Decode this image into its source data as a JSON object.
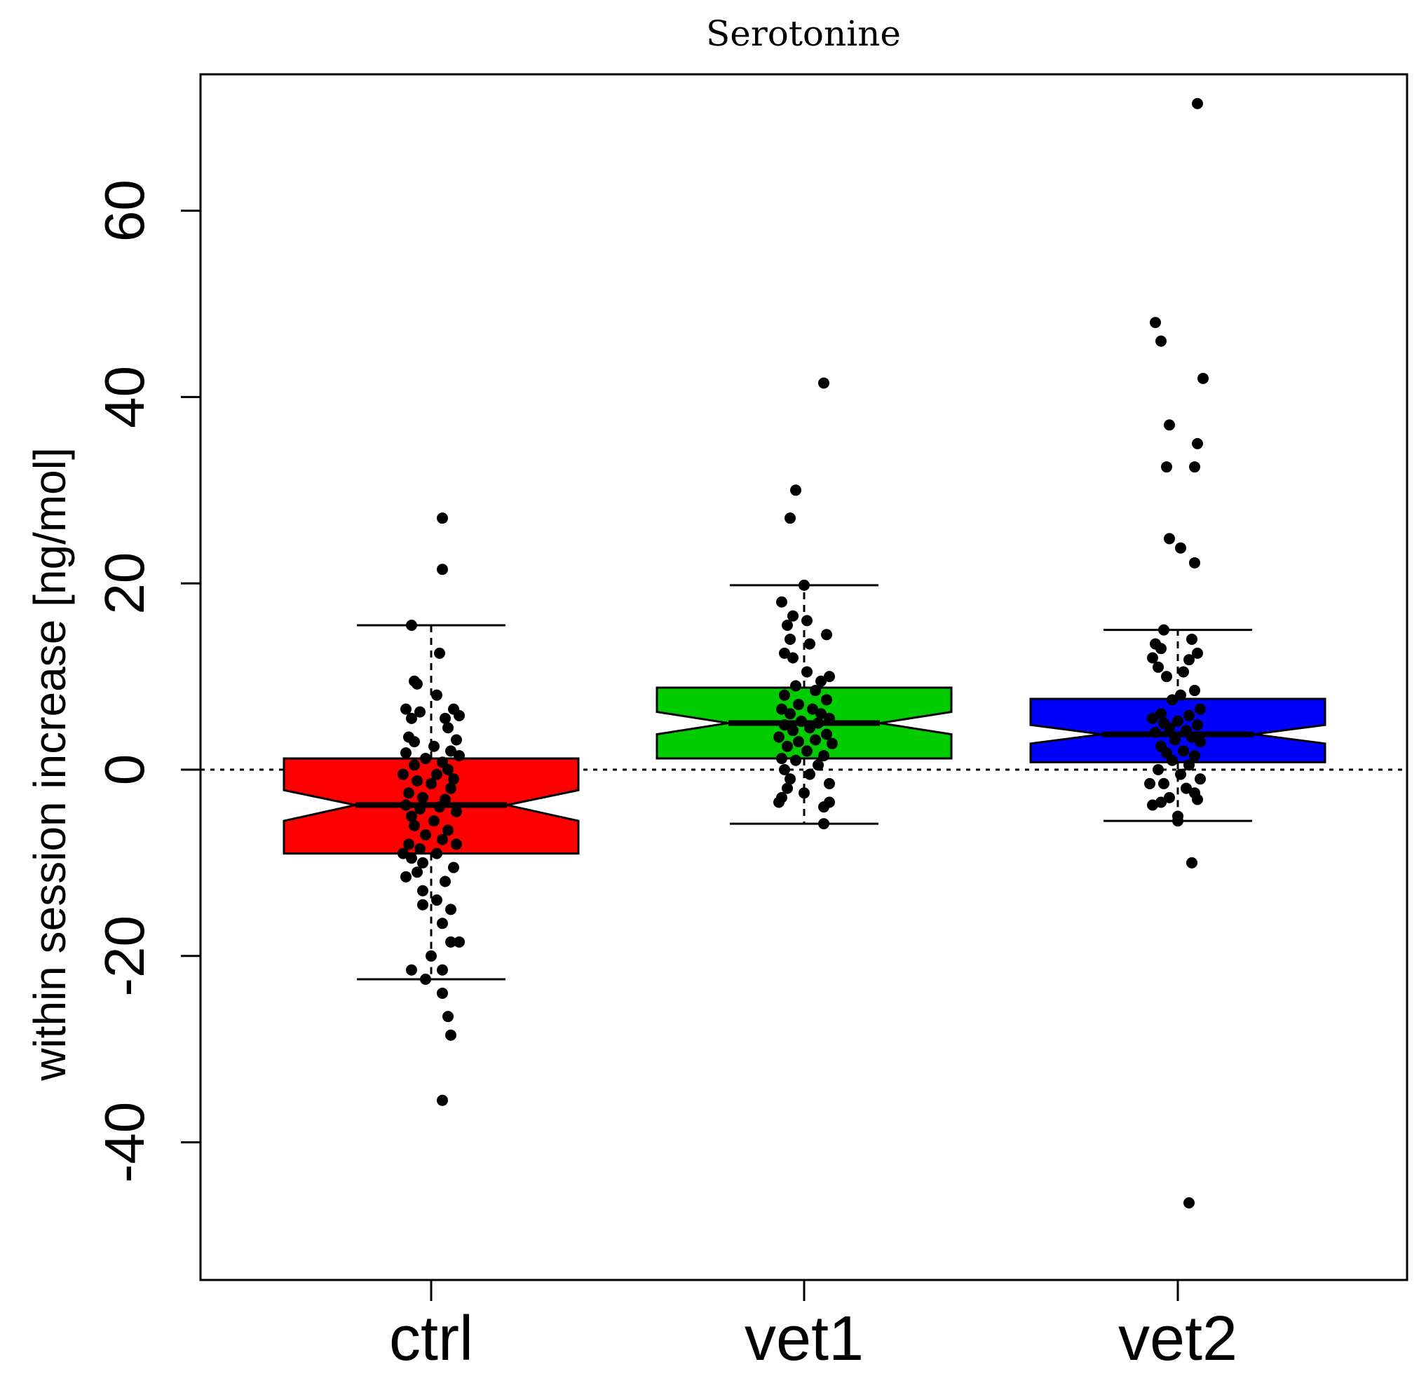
{
  "chart_data": {
    "type": "box",
    "title": "Serotonine",
    "xlabel": "",
    "ylabel": "within session increase [ng/mol]",
    "ylim": [
      -55,
      75
    ],
    "yticks": [
      -40,
      -20,
      0,
      20,
      40,
      60
    ],
    "reference_line": {
      "y": 0,
      "style": "dotted"
    },
    "notched": true,
    "categories": [
      "ctrl",
      "vet1",
      "vet2"
    ],
    "boxes": [
      {
        "name": "ctrl",
        "color": "#ff0000",
        "whisker_low": -22.5,
        "q1": -9.0,
        "median": -3.8,
        "q3": 1.2,
        "whisker_high": 15.5,
        "notch_low": -5.5,
        "notch_high": -2.2
      },
      {
        "name": "vet1",
        "color": "#00cc00",
        "whisker_low": -5.8,
        "q1": 1.2,
        "median": 5.0,
        "q3": 8.8,
        "whisker_high": 19.8,
        "notch_low": 3.8,
        "notch_high": 6.2
      },
      {
        "name": "vet2",
        "color": "#0000ff",
        "whisker_low": -5.5,
        "q1": 0.8,
        "median": 3.8,
        "q3": 7.6,
        "whisker_high": 15.0,
        "notch_low": 2.8,
        "notch_high": 4.8
      }
    ],
    "points": [
      [
        {
          "x": 0.04,
          "y": 27.0
        },
        {
          "x": 0.04,
          "y": 21.5
        },
        {
          "x": -0.07,
          "y": 15.5
        },
        {
          "x": 0.03,
          "y": 12.5
        },
        {
          "x": -0.06,
          "y": 9.5
        },
        {
          "x": -0.05,
          "y": 9.2
        },
        {
          "x": 0.02,
          "y": 8.0
        },
        {
          "x": -0.09,
          "y": 6.5
        },
        {
          "x": 0.08,
          "y": 6.5
        },
        {
          "x": -0.04,
          "y": 6.2
        },
        {
          "x": 0.1,
          "y": 5.8
        },
        {
          "x": 0.05,
          "y": 5.5
        },
        {
          "x": -0.07,
          "y": 5.5
        },
        {
          "x": 0.06,
          "y": 4.5
        },
        {
          "x": -0.08,
          "y": 3.5
        },
        {
          "x": 0.09,
          "y": 3.2
        },
        {
          "x": -0.06,
          "y": 3.0
        },
        {
          "x": 0.01,
          "y": 2.5
        },
        {
          "x": 0.07,
          "y": 2.0
        },
        {
          "x": -0.09,
          "y": 1.8
        },
        {
          "x": 0.1,
          "y": 1.5
        },
        {
          "x": -0.02,
          "y": 1.2
        },
        {
          "x": 0.04,
          "y": 0.8
        },
        {
          "x": -0.06,
          "y": 0.5
        },
        {
          "x": 0.06,
          "y": 0.0
        },
        {
          "x": -0.1,
          "y": -0.5
        },
        {
          "x": 0.02,
          "y": -0.5
        },
        {
          "x": 0.08,
          "y": -1.0
        },
        {
          "x": -0.05,
          "y": -1.2
        },
        {
          "x": 0.0,
          "y": -1.5
        },
        {
          "x": 0.07,
          "y": -2.0
        },
        {
          "x": -0.08,
          "y": -2.5
        },
        {
          "x": -0.03,
          "y": -3.0
        },
        {
          "x": 0.05,
          "y": -3.2
        },
        {
          "x": -0.09,
          "y": -3.8
        },
        {
          "x": 0.03,
          "y": -4.0
        },
        {
          "x": -0.04,
          "y": -4.2
        },
        {
          "x": 0.09,
          "y": -4.5
        },
        {
          "x": -0.07,
          "y": -5.0
        },
        {
          "x": 0.01,
          "y": -5.5
        },
        {
          "x": -0.06,
          "y": -6.0
        },
        {
          "x": 0.06,
          "y": -6.5
        },
        {
          "x": -0.02,
          "y": -7.0
        },
        {
          "x": 0.04,
          "y": -7.5
        },
        {
          "x": 0.09,
          "y": -8.0
        },
        {
          "x": -0.08,
          "y": -8.0
        },
        {
          "x": -0.04,
          "y": -8.5
        },
        {
          "x": 0.02,
          "y": -9.0
        },
        {
          "x": -0.1,
          "y": -9.0
        },
        {
          "x": -0.07,
          "y": -9.5
        },
        {
          "x": -0.03,
          "y": -10.0
        },
        {
          "x": 0.08,
          "y": -10.5
        },
        {
          "x": -0.05,
          "y": -11.0
        },
        {
          "x": -0.09,
          "y": -11.5
        },
        {
          "x": 0.05,
          "y": -12.0
        },
        {
          "x": -0.03,
          "y": -13.0
        },
        {
          "x": 0.02,
          "y": -14.0
        },
        {
          "x": -0.03,
          "y": -14.5
        },
        {
          "x": 0.07,
          "y": -15.0
        },
        {
          "x": 0.04,
          "y": -16.5
        },
        {
          "x": 0.07,
          "y": -18.5
        },
        {
          "x": 0.1,
          "y": -18.5
        },
        {
          "x": 0.0,
          "y": -20.0
        },
        {
          "x": 0.04,
          "y": -21.5
        },
        {
          "x": -0.07,
          "y": -21.5
        },
        {
          "x": -0.02,
          "y": -22.5
        },
        {
          "x": 0.04,
          "y": -24.0
        },
        {
          "x": 0.06,
          "y": -26.5
        },
        {
          "x": 0.07,
          "y": -28.5
        },
        {
          "x": 0.04,
          "y": -35.5
        }
      ],
      [
        {
          "x": 0.07,
          "y": 41.5
        },
        {
          "x": -0.03,
          "y": 30.0
        },
        {
          "x": -0.05,
          "y": 27.0
        },
        {
          "x": 0.0,
          "y": 19.8
        },
        {
          "x": -0.08,
          "y": 18.0
        },
        {
          "x": -0.04,
          "y": 16.5
        },
        {
          "x": 0.01,
          "y": 16.0
        },
        {
          "x": -0.06,
          "y": 15.5
        },
        {
          "x": 0.08,
          "y": 14.5
        },
        {
          "x": -0.05,
          "y": 14.0
        },
        {
          "x": 0.02,
          "y": 13.5
        },
        {
          "x": -0.07,
          "y": 12.5
        },
        {
          "x": -0.04,
          "y": 12.0
        },
        {
          "x": 0.01,
          "y": 10.5
        },
        {
          "x": 0.09,
          "y": 10.0
        },
        {
          "x": 0.06,
          "y": 9.5
        },
        {
          "x": -0.03,
          "y": 9.0
        },
        {
          "x": 0.04,
          "y": 8.5
        },
        {
          "x": -0.07,
          "y": 8.0
        },
        {
          "x": 0.08,
          "y": 7.5
        },
        {
          "x": -0.02,
          "y": 7.0
        },
        {
          "x": -0.08,
          "y": 6.5
        },
        {
          "x": 0.03,
          "y": 6.5
        },
        {
          "x": 0.06,
          "y": 6.0
        },
        {
          "x": -0.05,
          "y": 6.0
        },
        {
          "x": 0.09,
          "y": 5.5
        },
        {
          "x": -0.01,
          "y": 5.2
        },
        {
          "x": 0.05,
          "y": 5.0
        },
        {
          "x": -0.07,
          "y": 4.8
        },
        {
          "x": 0.02,
          "y": 4.5
        },
        {
          "x": -0.04,
          "y": 4.2
        },
        {
          "x": 0.08,
          "y": 3.8
        },
        {
          "x": -0.09,
          "y": 3.5
        },
        {
          "x": 0.04,
          "y": 3.2
        },
        {
          "x": -0.02,
          "y": 3.0
        },
        {
          "x": 0.1,
          "y": 2.8
        },
        {
          "x": -0.06,
          "y": 2.5
        },
        {
          "x": 0.01,
          "y": 2.0
        },
        {
          "x": 0.07,
          "y": 1.5
        },
        {
          "x": -0.08,
          "y": 1.2
        },
        {
          "x": -0.03,
          "y": 1.0
        },
        {
          "x": 0.05,
          "y": 0.5
        },
        {
          "x": -0.07,
          "y": 0.0
        },
        {
          "x": 0.02,
          "y": -0.5
        },
        {
          "x": -0.05,
          "y": -1.0
        },
        {
          "x": 0.09,
          "y": -1.5
        },
        {
          "x": -0.06,
          "y": -2.0
        },
        {
          "x": 0.0,
          "y": -2.5
        },
        {
          "x": -0.08,
          "y": -3.0
        },
        {
          "x": 0.09,
          "y": -3.5
        },
        {
          "x": -0.09,
          "y": -3.5
        },
        {
          "x": 0.07,
          "y": -4.0
        },
        {
          "x": 0.07,
          "y": -5.8
        }
      ],
      [
        {
          "x": 0.07,
          "y": 71.5
        },
        {
          "x": -0.08,
          "y": 48.0
        },
        {
          "x": -0.06,
          "y": 46.0
        },
        {
          "x": 0.09,
          "y": 42.0
        },
        {
          "x": -0.03,
          "y": 37.0
        },
        {
          "x": 0.07,
          "y": 35.0
        },
        {
          "x": -0.04,
          "y": 32.5
        },
        {
          "x": 0.06,
          "y": 32.5
        },
        {
          "x": -0.03,
          "y": 24.8
        },
        {
          "x": 0.01,
          "y": 23.8
        },
        {
          "x": 0.06,
          "y": 22.2
        },
        {
          "x": -0.05,
          "y": 15.0
        },
        {
          "x": 0.05,
          "y": 14.0
        },
        {
          "x": -0.08,
          "y": 13.5
        },
        {
          "x": -0.06,
          "y": 13.0
        },
        {
          "x": 0.07,
          "y": 12.5
        },
        {
          "x": -0.09,
          "y": 12.0
        },
        {
          "x": 0.04,
          "y": 11.8
        },
        {
          "x": -0.07,
          "y": 11.0
        },
        {
          "x": 0.02,
          "y": 10.5
        },
        {
          "x": -0.04,
          "y": 10.0
        },
        {
          "x": 0.06,
          "y": 8.5
        },
        {
          "x": 0.01,
          "y": 8.0
        },
        {
          "x": -0.02,
          "y": 7.5
        },
        {
          "x": 0.08,
          "y": 6.5
        },
        {
          "x": -0.06,
          "y": 6.0
        },
        {
          "x": 0.04,
          "y": 5.8
        },
        {
          "x": -0.09,
          "y": 5.5
        },
        {
          "x": 0.0,
          "y": 5.2
        },
        {
          "x": -0.05,
          "y": 5.0
        },
        {
          "x": 0.07,
          "y": 4.8
        },
        {
          "x": -0.03,
          "y": 4.5
        },
        {
          "x": 0.03,
          "y": 4.2
        },
        {
          "x": -0.08,
          "y": 4.0
        },
        {
          "x": 0.05,
          "y": 3.5
        },
        {
          "x": -0.01,
          "y": 3.2
        },
        {
          "x": 0.08,
          "y": 3.0
        },
        {
          "x": -0.06,
          "y": 2.5
        },
        {
          "x": 0.02,
          "y": 2.0
        },
        {
          "x": -0.04,
          "y": 1.8
        },
        {
          "x": 0.06,
          "y": 1.5
        },
        {
          "x": -0.02,
          "y": 1.0
        },
        {
          "x": 0.04,
          "y": 0.5
        },
        {
          "x": -0.07,
          "y": 0.0
        },
        {
          "x": 0.01,
          "y": -0.5
        },
        {
          "x": 0.08,
          "y": -1.0
        },
        {
          "x": -0.05,
          "y": -1.5
        },
        {
          "x": 0.03,
          "y": -2.0
        },
        {
          "x": -0.1,
          "y": -1.5
        },
        {
          "x": 0.06,
          "y": -2.5
        },
        {
          "x": -0.03,
          "y": -3.0
        },
        {
          "x": 0.07,
          "y": -3.2
        },
        {
          "x": -0.09,
          "y": -3.8
        },
        {
          "x": -0.06,
          "y": -3.5
        },
        {
          "x": 0.0,
          "y": -5.0
        },
        {
          "x": 0.0,
          "y": -5.5
        },
        {
          "x": 0.05,
          "y": -10.0
        },
        {
          "x": 0.04,
          "y": -46.5
        }
      ]
    ]
  }
}
